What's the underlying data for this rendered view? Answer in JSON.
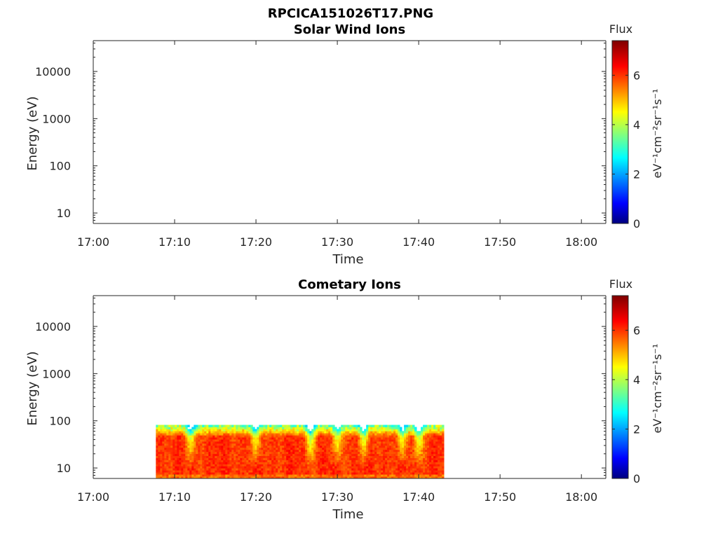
{
  "figure_title": "RPCICA151026T17.PNG",
  "chart_data": [
    {
      "type": "heatmap",
      "title": "Solar Wind Ions",
      "xlabel": "Time",
      "ylabel": "Energy (eV)",
      "x_ticks": [
        "17:00",
        "17:10",
        "17:20",
        "17:30",
        "17:40",
        "17:50",
        "18:00"
      ],
      "x_range": [
        "17:00",
        "18:03"
      ],
      "y_scale": "log",
      "y_ticks": [
        "10",
        "100",
        "1000",
        "10000"
      ],
      "y_range": [
        6,
        45000
      ],
      "colorbar": {
        "title": "Flux",
        "unit": "eV⁻¹cm⁻²sr⁻¹s⁻¹",
        "ticks": [
          "0",
          "2",
          "4",
          "6"
        ],
        "range": [
          0,
          7.4
        ],
        "colormap": "jet"
      },
      "data_present": false,
      "data": []
    },
    {
      "type": "heatmap",
      "title": "Cometary Ions",
      "xlabel": "Time",
      "ylabel": "Energy (eV)",
      "x_ticks": [
        "17:00",
        "17:10",
        "17:20",
        "17:30",
        "17:40",
        "17:50",
        "18:00"
      ],
      "x_range": [
        "17:00",
        "18:03"
      ],
      "y_scale": "log",
      "y_ticks": [
        "10",
        "100",
        "1000",
        "10000"
      ],
      "y_range": [
        6,
        45000
      ],
      "colorbar": {
        "title": "Flux",
        "unit": "eV⁻¹cm⁻²sr⁻¹s⁻¹",
        "ticks": [
          "0",
          "2",
          "4",
          "6"
        ],
        "range": [
          0,
          7.4
        ],
        "colormap": "jet"
      },
      "data_present": true,
      "data_time_range": [
        "17:07.7",
        "17:43.1"
      ],
      "data_energy_range": [
        6,
        82
      ],
      "flux_min_edge": 3.5,
      "flux_core": 6.3,
      "low_flux_dips_minutes": [
        12,
        20,
        26.7,
        30,
        33.3,
        38,
        40
      ]
    }
  ]
}
